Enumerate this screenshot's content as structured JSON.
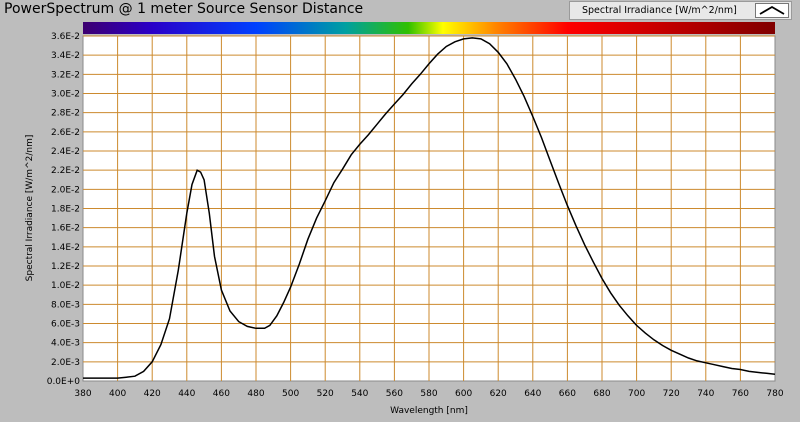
{
  "window": {
    "title": "PowerSpectrum @ 1 meter Source Sensor Distance"
  },
  "legend": {
    "label": "Spectral Irradiance [W/m^2/nm]",
    "icon": "line-plot-icon"
  },
  "chart_data": {
    "type": "line",
    "title": "PowerSpectrum @ 1 meter Source Sensor Distance",
    "xlabel": "Wavelength [nm]",
    "ylabel": "Spectral Irradiance [W/m^2/nm]",
    "xlim": [
      380,
      780
    ],
    "ylim": [
      0,
      0.036
    ],
    "grid": true,
    "legend_position": "top-right",
    "line_color": "#000000",
    "grid_color": "#cc8a2e",
    "plot_background": "#ffffff",
    "x_ticks": [
      "380",
      "400",
      "420",
      "440",
      "460",
      "480",
      "500",
      "520",
      "540",
      "560",
      "580",
      "600",
      "620",
      "640",
      "660",
      "680",
      "700",
      "720",
      "740",
      "760",
      "780"
    ],
    "y_ticks": [
      "0.0E+0",
      "2.0E-3",
      "4.0E-3",
      "6.0E-3",
      "8.0E-3",
      "1.0E-2",
      "1.2E-2",
      "1.4E-2",
      "1.6E-2",
      "1.8E-2",
      "2.0E-2",
      "2.2E-2",
      "2.4E-2",
      "2.6E-2",
      "2.8E-2",
      "3.0E-2",
      "3.2E-2",
      "3.4E-2",
      "3.6E-2"
    ],
    "series": [
      {
        "name": "Spectral Irradiance [W/m^2/nm]",
        "x": [
          380,
          390,
          400,
          405,
          410,
          415,
          420,
          425,
          430,
          435,
          440,
          443,
          446,
          448,
          450,
          453,
          456,
          460,
          465,
          470,
          475,
          480,
          485,
          488,
          492,
          496,
          500,
          505,
          510,
          515,
          520,
          525,
          530,
          535,
          540,
          545,
          550,
          555,
          560,
          565,
          570,
          575,
          580,
          585,
          590,
          595,
          600,
          605,
          610,
          615,
          620,
          625,
          630,
          635,
          640,
          645,
          650,
          655,
          660,
          665,
          670,
          675,
          680,
          685,
          690,
          695,
          700,
          705,
          710,
          715,
          720,
          725,
          730,
          735,
          740,
          745,
          750,
          755,
          760,
          765,
          770,
          775,
          780
        ],
        "y": [
          0.0003,
          0.0003,
          0.0003,
          0.0004,
          0.0005,
          0.001,
          0.002,
          0.0038,
          0.0065,
          0.0115,
          0.0175,
          0.0205,
          0.022,
          0.0218,
          0.021,
          0.0175,
          0.013,
          0.0095,
          0.0073,
          0.0062,
          0.0057,
          0.0055,
          0.0055,
          0.0058,
          0.0068,
          0.0082,
          0.0098,
          0.0122,
          0.0148,
          0.017,
          0.0188,
          0.0207,
          0.0221,
          0.0236,
          0.0247,
          0.0257,
          0.0268,
          0.0279,
          0.0289,
          0.0299,
          0.031,
          0.032,
          0.0331,
          0.0341,
          0.0349,
          0.0354,
          0.0357,
          0.0358,
          0.0357,
          0.0352,
          0.0343,
          0.0331,
          0.0315,
          0.0297,
          0.0276,
          0.0254,
          0.023,
          0.0206,
          0.0183,
          0.0162,
          0.0142,
          0.0124,
          0.0107,
          0.0092,
          0.0079,
          0.0068,
          0.0058,
          0.005,
          0.0043,
          0.0037,
          0.0032,
          0.0028,
          0.0024,
          0.0021,
          0.0019,
          0.0017,
          0.0015,
          0.0013,
          0.0012,
          0.001,
          0.0009,
          0.0008,
          0.0007
        ]
      }
    ]
  }
}
